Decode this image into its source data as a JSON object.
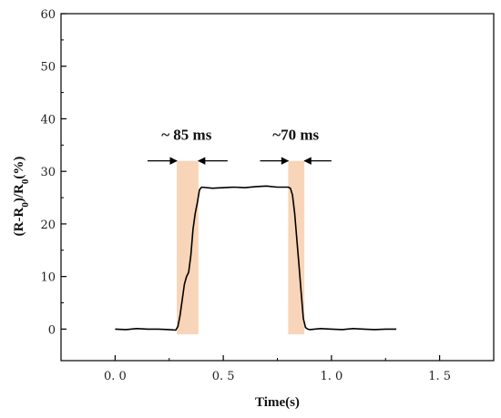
{
  "chart_data": {
    "type": "line",
    "title": "",
    "xlabel": "Time(s)",
    "ylabel_parts": [
      "(R-R",
      "0",
      ")/R",
      "0",
      "(%)"
    ],
    "xlim": [
      -0.25,
      1.75
    ],
    "ylim": [
      -6,
      60
    ],
    "x_ticks": [
      0.0,
      0.5,
      1.0,
      1.5
    ],
    "x_tick_labels": [
      "0. 0",
      "0. 5",
      "1. 0",
      "1. 5"
    ],
    "y_ticks": [
      0,
      10,
      20,
      30,
      40,
      50,
      60
    ],
    "y_tick_labels": [
      "0",
      "10",
      "20",
      "30",
      "40",
      "50",
      "60"
    ],
    "grid": false,
    "series": [
      {
        "color": "#000000",
        "x": [
          0.0,
          0.05,
          0.1,
          0.15,
          0.2,
          0.25,
          0.28,
          0.29,
          0.3,
          0.31,
          0.32,
          0.33,
          0.34,
          0.35,
          0.36,
          0.37,
          0.38,
          0.39,
          0.4,
          0.45,
          0.5,
          0.55,
          0.6,
          0.65,
          0.7,
          0.75,
          0.8,
          0.81,
          0.82,
          0.83,
          0.84,
          0.85,
          0.86,
          0.87,
          0.88,
          0.89,
          0.9,
          0.95,
          1.0,
          1.05,
          1.1,
          1.15,
          1.2,
          1.25,
          1.3
        ],
        "y": [
          0.0,
          -0.1,
          0.1,
          0.0,
          0.0,
          -0.1,
          -0.2,
          0.5,
          2.5,
          5.5,
          8.5,
          10.0,
          10.8,
          14.0,
          19.0,
          22.0,
          24.0,
          26.5,
          27.0,
          26.8,
          26.9,
          27.0,
          26.9,
          27.1,
          27.2,
          27.0,
          27.0,
          26.8,
          25.5,
          22.0,
          17.0,
          12.0,
          7.0,
          2.0,
          0.3,
          0.0,
          -0.1,
          0.1,
          0.0,
          -0.1,
          0.1,
          0.0,
          -0.1,
          0.0,
          0.0
        ]
      }
    ],
    "shaded_regions": [
      {
        "x_start": 0.285,
        "x_end": 0.385,
        "color": "#f8d5b8"
      },
      {
        "x_start": 0.8,
        "x_end": 0.875,
        "color": "#f8d5b8"
      }
    ],
    "annotations": [
      {
        "text": "~ 85 ms",
        "x": 0.33,
        "y": 36
      },
      {
        "text": "~70 ms",
        "x": 0.835,
        "y": 36
      }
    ],
    "arrows": [
      {
        "x_from": 0.15,
        "x_to": 0.285,
        "y": 32
      },
      {
        "x_from": 0.52,
        "x_to": 0.385,
        "y": 32
      },
      {
        "x_from": 0.67,
        "x_to": 0.8,
        "y": 32
      },
      {
        "x_from": 1.0,
        "x_to": 0.875,
        "y": 32
      }
    ]
  }
}
